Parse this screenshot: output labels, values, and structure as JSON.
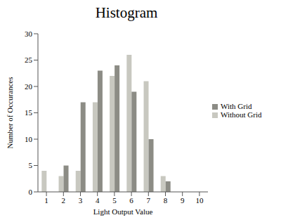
{
  "chart_data": {
    "type": "bar",
    "title": "Histogram",
    "x_label": "Light Output Value",
    "y_label": "Number of Occurances",
    "categories": [
      "1",
      "2",
      "3",
      "4",
      "5",
      "6",
      "7",
      "8",
      "9",
      "10"
    ],
    "series": [
      {
        "name": "Without Grid",
        "color": "#c8c8c0",
        "values": [
          4,
          3,
          4,
          17,
          22,
          26,
          21,
          3,
          0,
          0
        ]
      },
      {
        "name": "With Grid",
        "color": "#8c8c85",
        "values": [
          0,
          5,
          17,
          23,
          24,
          19,
          10,
          2,
          0,
          0
        ]
      }
    ],
    "ylim": [
      0,
      30
    ],
    "yticks": [
      0,
      5,
      10,
      15,
      20,
      25,
      30
    ],
    "grid": false,
    "legend": "right"
  }
}
